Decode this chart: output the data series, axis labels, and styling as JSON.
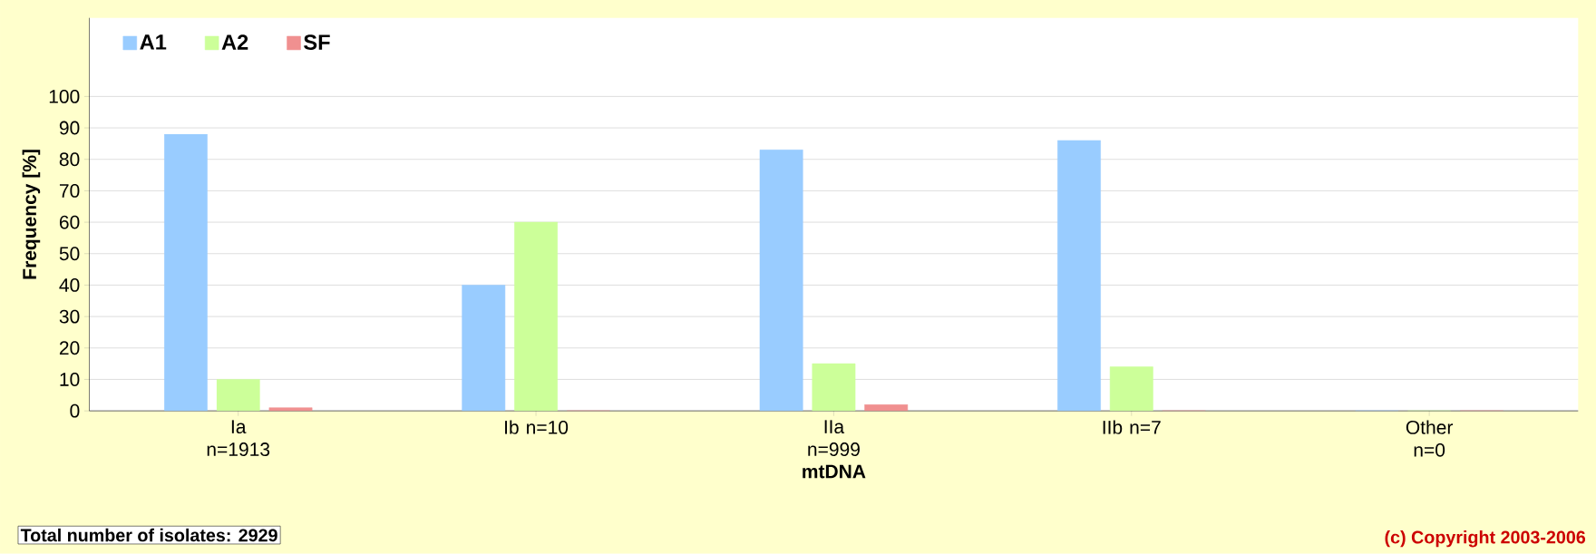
{
  "chart_data": {
    "type": "bar",
    "xlabel": "mtDNA",
    "ylabel": "Frequency [%]",
    "categories": [
      "Ia n=1913",
      "Ib n=10",
      "IIa n=999",
      "IIb n=7",
      "Other n=0"
    ],
    "series": [
      {
        "name": "A1",
        "color": "#99ccff",
        "values": [
          88,
          40,
          83,
          86,
          0
        ]
      },
      {
        "name": "A2",
        "color": "#ccff99",
        "values": [
          10,
          60,
          15,
          14,
          0
        ]
      },
      {
        "name": "SF",
        "color": "#f09090",
        "values": [
          1,
          0,
          2,
          0,
          0
        ]
      }
    ],
    "ylim": [
      0,
      125
    ],
    "yticks": [
      0,
      10,
      20,
      30,
      40,
      50,
      60,
      70,
      80,
      90,
      100
    ],
    "grid": "y",
    "legend": "top left",
    "annotations": [
      "Total number of isolates: 2929",
      "(c) Copyright 2003-2006"
    ]
  }
}
